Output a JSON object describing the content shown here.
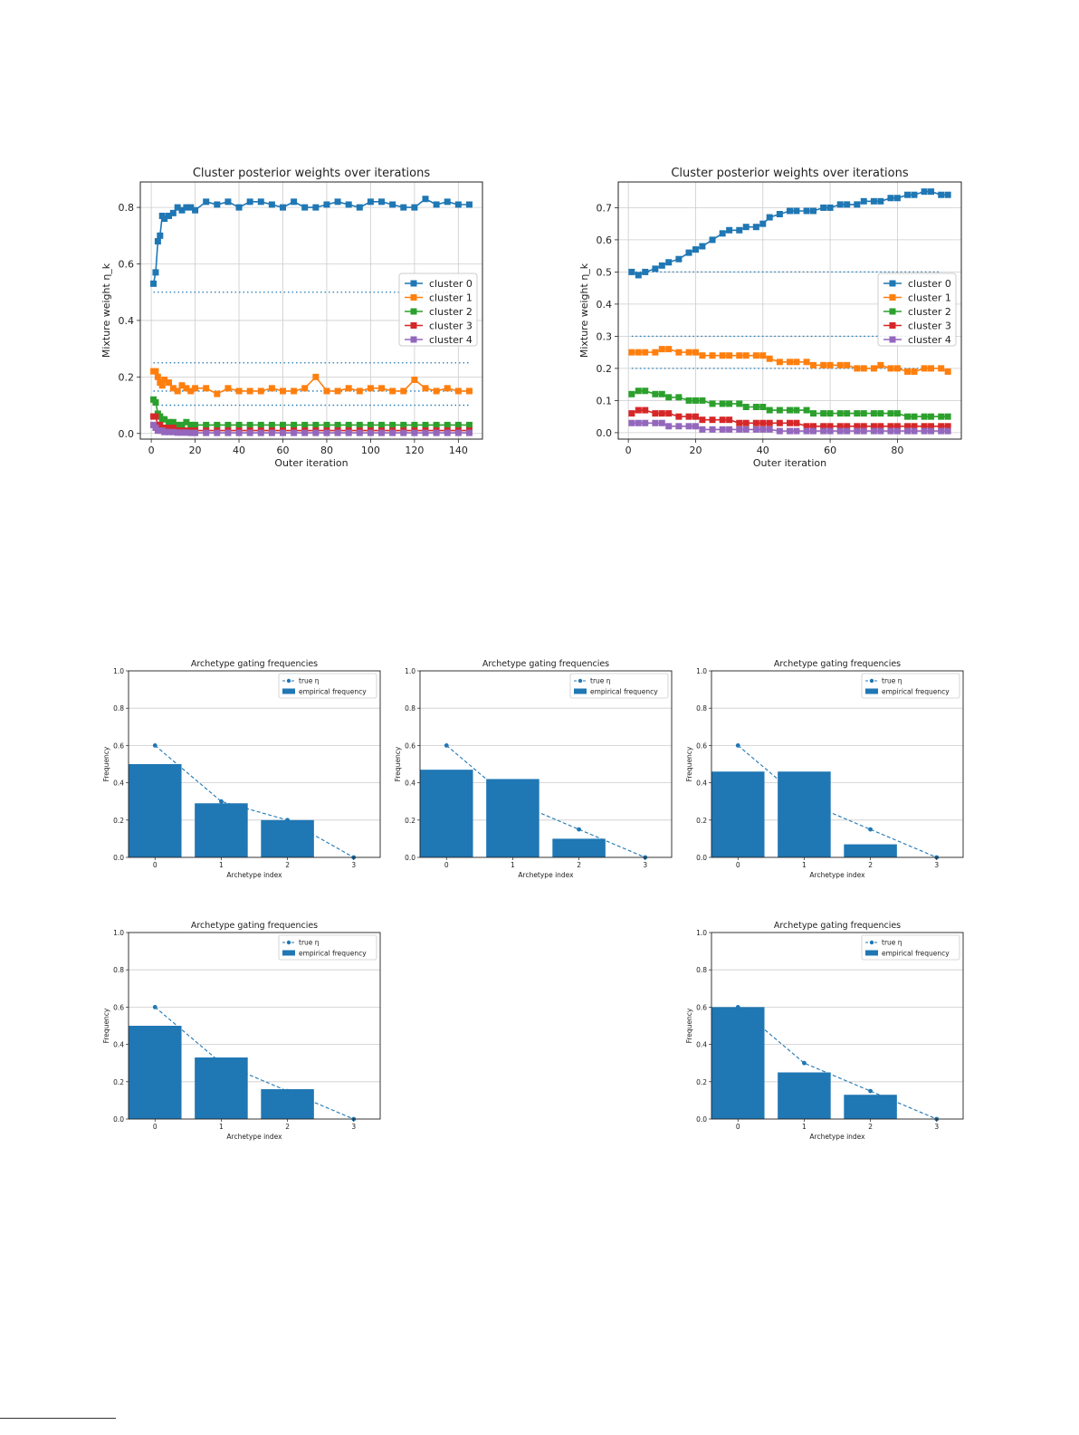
{
  "colors": {
    "c0": "#1f77b4",
    "c1": "#ff7f0e",
    "c2": "#2ca02c",
    "c3": "#d62728",
    "c4": "#9467bd",
    "grid": "#cccccc",
    "bar": "#1f77b4"
  },
  "chart_data": [
    {
      "type": "line",
      "title": "Cluster posterior weights over iterations",
      "xlabel": "Outer iteration",
      "ylabel": "Mixture weight η_k",
      "xlim": [
        -5,
        151
      ],
      "ylim": [
        -0.02,
        0.89
      ],
      "xticks": [
        0,
        20,
        40,
        60,
        80,
        100,
        120,
        140
      ],
      "yticks": [
        0.0,
        0.2,
        0.4,
        0.6,
        0.8
      ],
      "grid": true,
      "legend_position": "center-right",
      "true_weight_lines": [
        0.5,
        0.25,
        0.15,
        0.1
      ],
      "series": [
        {
          "name": "cluster 0",
          "color": "#1f77b4",
          "x": [
            1,
            2,
            3,
            4,
            5,
            6,
            8,
            10,
            12,
            14,
            16,
            18,
            20,
            25,
            30,
            35,
            40,
            45,
            50,
            55,
            60,
            65,
            70,
            75,
            80,
            85,
            90,
            95,
            100,
            105,
            110,
            115,
            120,
            125,
            130,
            135,
            140,
            145
          ],
          "values": [
            0.53,
            0.57,
            0.68,
            0.7,
            0.77,
            0.76,
            0.77,
            0.78,
            0.8,
            0.79,
            0.8,
            0.8,
            0.79,
            0.82,
            0.81,
            0.82,
            0.8,
            0.82,
            0.82,
            0.81,
            0.8,
            0.82,
            0.8,
            0.8,
            0.81,
            0.82,
            0.81,
            0.8,
            0.82,
            0.82,
            0.81,
            0.8,
            0.8,
            0.83,
            0.81,
            0.82,
            0.81,
            0.81
          ]
        },
        {
          "name": "cluster 1",
          "color": "#ff7f0e",
          "x": [
            1,
            2,
            3,
            4,
            5,
            6,
            8,
            10,
            12,
            14,
            16,
            18,
            20,
            25,
            30,
            35,
            40,
            45,
            50,
            55,
            60,
            65,
            70,
            75,
            80,
            85,
            90,
            95,
            100,
            105,
            110,
            115,
            120,
            125,
            130,
            135,
            140,
            145
          ],
          "values": [
            0.22,
            0.22,
            0.2,
            0.18,
            0.17,
            0.19,
            0.18,
            0.16,
            0.15,
            0.17,
            0.16,
            0.15,
            0.16,
            0.16,
            0.14,
            0.16,
            0.15,
            0.15,
            0.15,
            0.16,
            0.15,
            0.15,
            0.16,
            0.2,
            0.15,
            0.15,
            0.16,
            0.15,
            0.16,
            0.16,
            0.15,
            0.15,
            0.19,
            0.16,
            0.15,
            0.16,
            0.15,
            0.15
          ]
        },
        {
          "name": "cluster 2",
          "color": "#2ca02c",
          "x": [
            1,
            2,
            3,
            4,
            5,
            6,
            8,
            10,
            12,
            14,
            16,
            18,
            20,
            25,
            30,
            35,
            40,
            45,
            50,
            55,
            60,
            65,
            70,
            75,
            80,
            85,
            90,
            95,
            100,
            105,
            110,
            115,
            120,
            125,
            130,
            135,
            140,
            145
          ],
          "values": [
            0.12,
            0.11,
            0.07,
            0.06,
            0.05,
            0.05,
            0.04,
            0.04,
            0.03,
            0.03,
            0.04,
            0.03,
            0.03,
            0.03,
            0.03,
            0.03,
            0.03,
            0.03,
            0.03,
            0.03,
            0.03,
            0.03,
            0.03,
            0.03,
            0.03,
            0.03,
            0.03,
            0.03,
            0.03,
            0.03,
            0.03,
            0.03,
            0.03,
            0.03,
            0.03,
            0.03,
            0.03,
            0.03
          ]
        },
        {
          "name": "cluster 3",
          "color": "#d62728",
          "x": [
            1,
            2,
            3,
            4,
            5,
            6,
            8,
            10,
            12,
            14,
            16,
            18,
            20,
            25,
            30,
            35,
            40,
            45,
            50,
            55,
            60,
            65,
            70,
            75,
            80,
            85,
            90,
            95,
            100,
            105,
            110,
            115,
            120,
            125,
            130,
            135,
            140,
            145
          ],
          "values": [
            0.06,
            0.06,
            0.03,
            0.03,
            0.02,
            0.02,
            0.02,
            0.02,
            0.01,
            0.01,
            0.01,
            0.01,
            0.01,
            0.01,
            0.01,
            0.01,
            0.01,
            0.01,
            0.01,
            0.01,
            0.01,
            0.01,
            0.01,
            0.01,
            0.01,
            0.01,
            0.01,
            0.01,
            0.01,
            0.01,
            0.01,
            0.01,
            0.01,
            0.01,
            0.01,
            0.01,
            0.01,
            0.01
          ]
        },
        {
          "name": "cluster 4",
          "color": "#9467bd",
          "x": [
            1,
            2,
            3,
            4,
            5,
            6,
            8,
            10,
            12,
            14,
            16,
            18,
            20,
            25,
            30,
            35,
            40,
            45,
            50,
            55,
            60,
            65,
            70,
            75,
            80,
            85,
            90,
            95,
            100,
            105,
            110,
            115,
            120,
            125,
            130,
            135,
            140,
            145
          ],
          "values": [
            0.03,
            0.02,
            0.01,
            0.01,
            0.01,
            0.005,
            0.005,
            0.005,
            0.003,
            0.003,
            0.003,
            0.002,
            0.002,
            0.002,
            0.002,
            0.002,
            0.002,
            0.002,
            0.002,
            0.002,
            0.002,
            0.002,
            0.002,
            0.002,
            0.002,
            0.002,
            0.002,
            0.002,
            0.002,
            0.002,
            0.002,
            0.002,
            0.002,
            0.002,
            0.002,
            0.002,
            0.002,
            0.002
          ]
        }
      ]
    },
    {
      "type": "line",
      "title": "Cluster posterior weights over iterations",
      "xlabel": "Outer iteration",
      "ylabel": "Mixture weight η_k",
      "xlim": [
        -3,
        99
      ],
      "ylim": [
        -0.02,
        0.78
      ],
      "xticks": [
        0,
        20,
        40,
        60,
        80
      ],
      "yticks": [
        0.0,
        0.1,
        0.2,
        0.3,
        0.4,
        0.5,
        0.6,
        0.7
      ],
      "grid": true,
      "legend_position": "center-right",
      "true_weight_lines": [
        0.5,
        0.3,
        0.2
      ],
      "series": [
        {
          "name": "cluster 0",
          "color": "#1f77b4",
          "x": [
            1,
            3,
            5,
            8,
            10,
            12,
            15,
            18,
            20,
            22,
            25,
            28,
            30,
            33,
            35,
            38,
            40,
            42,
            45,
            48,
            50,
            53,
            55,
            58,
            60,
            63,
            65,
            68,
            70,
            73,
            75,
            78,
            80,
            83,
            85,
            88,
            90,
            93,
            95
          ],
          "values": [
            0.5,
            0.49,
            0.5,
            0.51,
            0.52,
            0.53,
            0.54,
            0.56,
            0.57,
            0.58,
            0.6,
            0.62,
            0.63,
            0.63,
            0.64,
            0.64,
            0.65,
            0.67,
            0.68,
            0.69,
            0.69,
            0.69,
            0.69,
            0.7,
            0.7,
            0.71,
            0.71,
            0.71,
            0.72,
            0.72,
            0.72,
            0.73,
            0.73,
            0.74,
            0.74,
            0.75,
            0.75,
            0.74,
            0.74
          ]
        },
        {
          "name": "cluster 1",
          "color": "#ff7f0e",
          "x": [
            1,
            3,
            5,
            8,
            10,
            12,
            15,
            18,
            20,
            22,
            25,
            28,
            30,
            33,
            35,
            38,
            40,
            42,
            45,
            48,
            50,
            53,
            55,
            58,
            60,
            63,
            65,
            68,
            70,
            73,
            75,
            78,
            80,
            83,
            85,
            88,
            90,
            93,
            95
          ],
          "values": [
            0.25,
            0.25,
            0.25,
            0.25,
            0.26,
            0.26,
            0.25,
            0.25,
            0.25,
            0.24,
            0.24,
            0.24,
            0.24,
            0.24,
            0.24,
            0.24,
            0.24,
            0.23,
            0.22,
            0.22,
            0.22,
            0.22,
            0.21,
            0.21,
            0.21,
            0.21,
            0.21,
            0.2,
            0.2,
            0.2,
            0.21,
            0.2,
            0.2,
            0.19,
            0.19,
            0.2,
            0.2,
            0.2,
            0.19
          ]
        },
        {
          "name": "cluster 2",
          "color": "#2ca02c",
          "x": [
            1,
            3,
            5,
            8,
            10,
            12,
            15,
            18,
            20,
            22,
            25,
            28,
            30,
            33,
            35,
            38,
            40,
            42,
            45,
            48,
            50,
            53,
            55,
            58,
            60,
            63,
            65,
            68,
            70,
            73,
            75,
            78,
            80,
            83,
            85,
            88,
            90,
            93,
            95
          ],
          "values": [
            0.12,
            0.13,
            0.13,
            0.12,
            0.12,
            0.11,
            0.11,
            0.1,
            0.1,
            0.1,
            0.09,
            0.09,
            0.09,
            0.09,
            0.08,
            0.08,
            0.08,
            0.07,
            0.07,
            0.07,
            0.07,
            0.07,
            0.06,
            0.06,
            0.06,
            0.06,
            0.06,
            0.06,
            0.06,
            0.06,
            0.06,
            0.06,
            0.06,
            0.05,
            0.05,
            0.05,
            0.05,
            0.05,
            0.05
          ]
        },
        {
          "name": "cluster 3",
          "color": "#d62728",
          "x": [
            1,
            3,
            5,
            8,
            10,
            12,
            15,
            18,
            20,
            22,
            25,
            28,
            30,
            33,
            35,
            38,
            40,
            42,
            45,
            48,
            50,
            53,
            55,
            58,
            60,
            63,
            65,
            68,
            70,
            73,
            75,
            78,
            80,
            83,
            85,
            88,
            90,
            93,
            95
          ],
          "values": [
            0.06,
            0.07,
            0.07,
            0.06,
            0.06,
            0.06,
            0.05,
            0.05,
            0.05,
            0.04,
            0.04,
            0.04,
            0.04,
            0.03,
            0.03,
            0.03,
            0.03,
            0.03,
            0.03,
            0.03,
            0.03,
            0.02,
            0.02,
            0.02,
            0.02,
            0.02,
            0.02,
            0.02,
            0.02,
            0.02,
            0.02,
            0.02,
            0.02,
            0.02,
            0.02,
            0.02,
            0.02,
            0.02,
            0.02
          ]
        },
        {
          "name": "cluster 4",
          "color": "#9467bd",
          "x": [
            1,
            3,
            5,
            8,
            10,
            12,
            15,
            18,
            20,
            22,
            25,
            28,
            30,
            33,
            35,
            38,
            40,
            42,
            45,
            48,
            50,
            53,
            55,
            58,
            60,
            63,
            65,
            68,
            70,
            73,
            75,
            78,
            80,
            83,
            85,
            88,
            90,
            93,
            95
          ],
          "values": [
            0.03,
            0.03,
            0.03,
            0.03,
            0.03,
            0.02,
            0.02,
            0.02,
            0.02,
            0.01,
            0.01,
            0.01,
            0.01,
            0.01,
            0.01,
            0.01,
            0.01,
            0.01,
            0.005,
            0.005,
            0.005,
            0.005,
            0.005,
            0.005,
            0.005,
            0.005,
            0.005,
            0.005,
            0.005,
            0.005,
            0.005,
            0.005,
            0.005,
            0.005,
            0.005,
            0.005,
            0.005,
            0.005,
            0.005
          ]
        }
      ]
    },
    {
      "type": "bar",
      "title": "Archetype gating frequencies",
      "xlabel": "Archetype index",
      "ylabel": "Frequency",
      "ylim": [
        0,
        1.0
      ],
      "yticks": [
        0.0,
        0.2,
        0.4,
        0.6,
        0.8,
        1.0
      ],
      "categories": [
        "0",
        "1",
        "2",
        "3"
      ],
      "grid": true,
      "legend_position": "top-right",
      "legend": [
        "true η",
        "empirical frequency"
      ],
      "values": [
        0.5,
        0.29,
        0.2,
        0.0
      ],
      "true_eta": [
        0.6,
        0.3,
        0.2,
        0.0
      ]
    },
    {
      "type": "bar",
      "title": "Archetype gating frequencies",
      "xlabel": "Archetype index",
      "ylabel": "Frequency",
      "ylim": [
        0,
        1.0
      ],
      "yticks": [
        0.0,
        0.2,
        0.4,
        0.6,
        0.8,
        1.0
      ],
      "categories": [
        "0",
        "1",
        "2",
        "3"
      ],
      "grid": true,
      "legend_position": "top-right",
      "legend": [
        "true η",
        "empirical frequency"
      ],
      "values": [
        0.47,
        0.42,
        0.1,
        0.0
      ],
      "true_eta": [
        0.6,
        0.3,
        0.15,
        0.0
      ]
    },
    {
      "type": "bar",
      "title": "Archetype gating frequencies",
      "xlabel": "Archetype index",
      "ylabel": "Frequency",
      "ylim": [
        0,
        1.0
      ],
      "yticks": [
        0.0,
        0.2,
        0.4,
        0.6,
        0.8,
        1.0
      ],
      "categories": [
        "0",
        "1",
        "2",
        "3"
      ],
      "grid": true,
      "legend_position": "top-right",
      "legend": [
        "true η",
        "empirical frequency"
      ],
      "values": [
        0.46,
        0.46,
        0.07,
        0.0
      ],
      "true_eta": [
        0.6,
        0.3,
        0.15,
        0.0
      ]
    },
    {
      "type": "bar",
      "title": "Archetype gating frequencies",
      "xlabel": "Archetype index",
      "ylabel": "Frequency",
      "ylim": [
        0,
        1.0
      ],
      "yticks": [
        0.0,
        0.2,
        0.4,
        0.6,
        0.8,
        1.0
      ],
      "categories": [
        "0",
        "1",
        "2",
        "3"
      ],
      "grid": true,
      "legend_position": "top-right",
      "legend": [
        "true η",
        "empirical frequency"
      ],
      "values": [
        0.5,
        0.33,
        0.16,
        0.0
      ],
      "true_eta": [
        0.6,
        0.3,
        0.15,
        0.0
      ]
    },
    {
      "type": "bar",
      "title": "Archetype gating frequencies",
      "xlabel": "Archetype index",
      "ylabel": "Frequency",
      "ylim": [
        0,
        1.0
      ],
      "yticks": [
        0.0,
        0.2,
        0.4,
        0.6,
        0.8,
        1.0
      ],
      "categories": [
        "0",
        "1",
        "2",
        "3"
      ],
      "grid": true,
      "legend_position": "top-right",
      "legend": [
        "true η",
        "empirical frequency"
      ],
      "values": [
        0.6,
        0.25,
        0.13,
        0.0
      ],
      "true_eta": [
        0.6,
        0.3,
        0.15,
        0.0
      ]
    }
  ]
}
